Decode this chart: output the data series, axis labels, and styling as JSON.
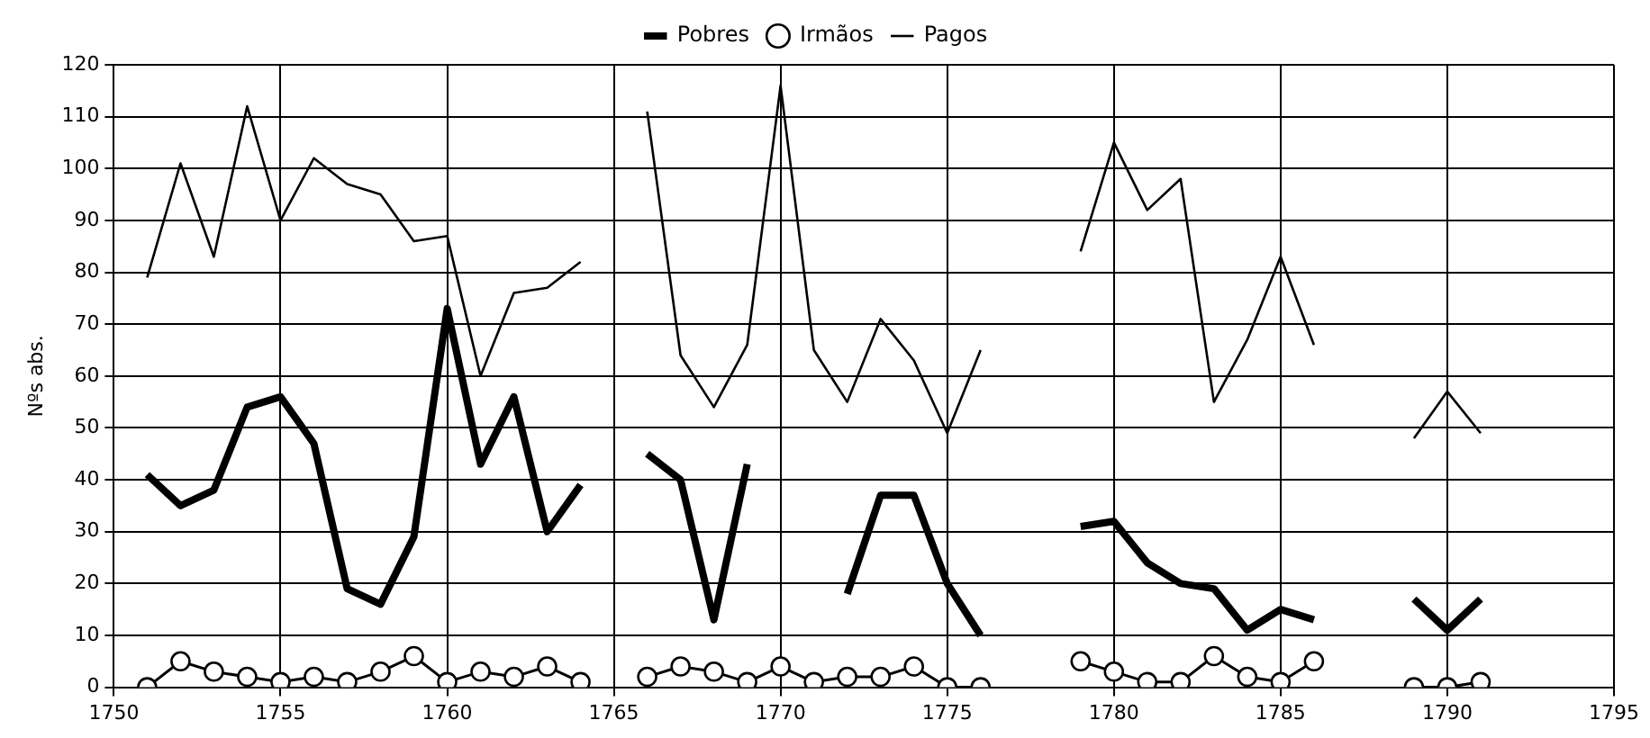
{
  "chart_data": {
    "type": "line",
    "ylabel": "Nºs abs.",
    "x": [
      1751,
      1752,
      1753,
      1754,
      1755,
      1756,
      1757,
      1758,
      1759,
      1760,
      1761,
      1762,
      1763,
      1764,
      1765,
      1766,
      1767,
      1768,
      1769,
      1770,
      1771,
      1772,
      1773,
      1774,
      1775,
      1776,
      1777,
      1778,
      1779,
      1780,
      1781,
      1782,
      1783,
      1784,
      1785,
      1786,
      1787,
      1788,
      1789,
      1790,
      1791
    ],
    "series": [
      {
        "name": "Pobres",
        "color": "#000000",
        "marker": "none",
        "values": [
          41,
          35,
          38,
          54,
          56,
          47,
          19,
          16,
          29,
          73,
          43,
          56,
          30,
          39,
          null,
          45,
          40,
          13,
          43,
          null,
          null,
          18,
          37,
          37,
          20,
          10,
          null,
          null,
          31,
          32,
          24,
          20,
          19,
          11,
          15,
          13,
          null,
          null,
          17,
          11,
          17
        ]
      },
      {
        "name": "Irmãos",
        "color": "#000000",
        "marker": "circle",
        "values": [
          0,
          5,
          3,
          2,
          1,
          2,
          1,
          3,
          6,
          1,
          3,
          2,
          4,
          1,
          null,
          2,
          4,
          3,
          1,
          4,
          1,
          2,
          2,
          4,
          0,
          0,
          null,
          null,
          5,
          3,
          1,
          1,
          6,
          2,
          1,
          5,
          null,
          null,
          0,
          0,
          1
        ]
      },
      {
        "name": "Pagos",
        "color": "#000000",
        "marker": "none",
        "values": [
          79,
          101,
          83,
          112,
          90,
          102,
          97,
          95,
          86,
          87,
          60,
          76,
          77,
          82,
          null,
          111,
          64,
          54,
          66,
          116,
          65,
          55,
          71,
          63,
          49,
          65,
          null,
          null,
          84,
          105,
          92,
          98,
          55,
          67,
          83,
          66,
          null,
          null,
          48,
          57,
          49
        ]
      }
    ],
    "xlim": [
      1750,
      1795
    ],
    "xticks": [
      1750,
      1755,
      1760,
      1765,
      1770,
      1775,
      1780,
      1785,
      1790,
      1795
    ],
    "ylim": [
      0,
      120
    ],
    "yticks": [
      0,
      10,
      20,
      30,
      40,
      50,
      60,
      70,
      80,
      90,
      100,
      110,
      120
    ],
    "grid": true,
    "legend": "top"
  }
}
